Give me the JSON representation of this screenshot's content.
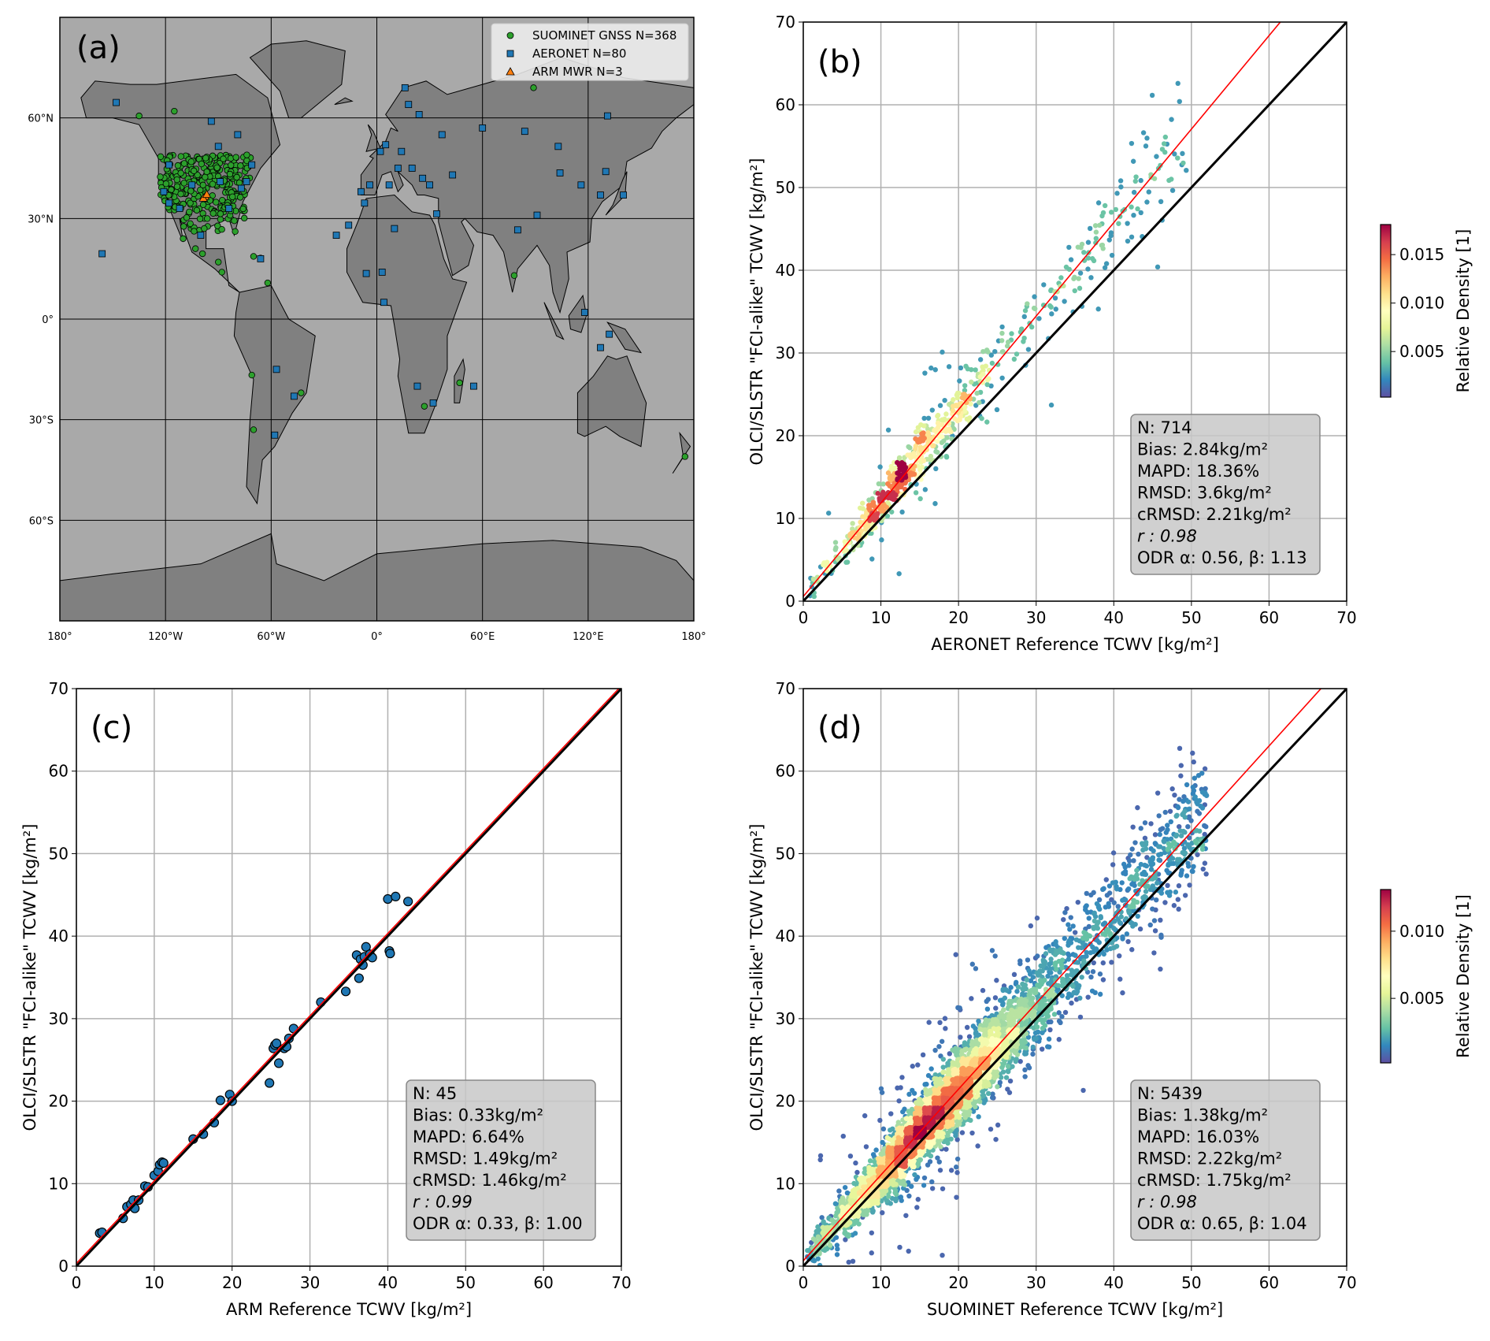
{
  "chart_data": [
    {
      "panel": "(a)",
      "type": "scatter",
      "subtype": "map",
      "x_tick_labels": [
        "180°",
        "120°W",
        "60°W",
        "0°",
        "60°E",
        "120°E",
        "180°"
      ],
      "y_tick_labels": [
        "60°N",
        "30°N",
        "0°",
        "30°S",
        "60°S"
      ],
      "xlim": [
        -180,
        180
      ],
      "ylim": [
        -90,
        90
      ],
      "grid": true,
      "legend_position": "top-right",
      "colors": {
        "ocean": "#a9a9a9",
        "land": "#808080"
      },
      "legend": [
        {
          "label": "SUOMINET GNSS N=368",
          "marker": "circle",
          "color": "#2ca02c"
        },
        {
          "label": "AERONET N=80",
          "marker": "square",
          "color": "#1f77b4"
        },
        {
          "label": "ARM MWR N=3",
          "marker": "triangle",
          "color": "#ff7f0e"
        }
      ],
      "aeronet_sites": [
        [
          -148,
          64.6
        ],
        [
          -156,
          19.5
        ],
        [
          -94,
          59
        ],
        [
          -90,
          51.5
        ],
        [
          -79,
          55
        ],
        [
          -71,
          46
        ],
        [
          -118,
          46
        ],
        [
          -121,
          38
        ],
        [
          -118,
          34.6
        ],
        [
          -77,
          39
        ],
        [
          -84,
          33
        ],
        [
          -105,
          40
        ],
        [
          -112,
          33
        ],
        [
          -89,
          41
        ],
        [
          -74,
          41
        ],
        [
          16,
          69
        ],
        [
          18,
          64
        ],
        [
          2,
          50
        ],
        [
          5,
          52
        ],
        [
          12,
          45
        ],
        [
          7,
          40
        ],
        [
          -9,
          38
        ],
        [
          -7,
          34.6
        ],
        [
          26,
          42
        ],
        [
          34,
          31.4
        ],
        [
          43,
          43
        ],
        [
          60,
          57
        ],
        [
          84,
          56
        ],
        [
          103,
          51.5
        ],
        [
          104,
          43.6
        ],
        [
          116,
          40
        ],
        [
          127,
          37
        ],
        [
          140,
          37
        ],
        [
          130,
          44
        ],
        [
          80,
          26.6
        ],
        [
          131,
          60.6
        ],
        [
          -16,
          28
        ],
        [
          -6,
          13.6
        ],
        [
          3,
          14
        ],
        [
          4,
          5
        ],
        [
          55,
          -20
        ],
        [
          23,
          -20
        ],
        [
          32,
          -25
        ],
        [
          -57,
          -15
        ],
        [
          -58,
          -34.6
        ],
        [
          -47,
          -23
        ],
        [
          127,
          -8.5
        ],
        [
          132,
          -4.5
        ],
        [
          118,
          2
        ],
        [
          91,
          31
        ],
        [
          10,
          27
        ],
        [
          -23,
          25
        ],
        [
          14,
          50
        ],
        [
          24,
          61
        ],
        [
          37,
          55
        ],
        [
          -4,
          40
        ],
        [
          30,
          40
        ],
        [
          20,
          45
        ],
        [
          -66,
          18
        ],
        [
          -100,
          25
        ]
      ],
      "suominet_sites_outside_conus": [
        [
          -135,
          60.6
        ],
        [
          -115,
          62
        ],
        [
          89,
          69
        ],
        [
          78,
          13
        ],
        [
          -71,
          -16.7
        ],
        [
          -70,
          -33
        ],
        [
          -43,
          -22
        ],
        [
          27,
          -26
        ],
        [
          47,
          -19
        ],
        [
          175,
          -41
        ],
        [
          -62,
          10.8
        ],
        [
          -70,
          18.7
        ],
        [
          -88,
          14
        ],
        [
          -90,
          17
        ],
        [
          -99,
          19.5
        ],
        [
          -103,
          21
        ],
        [
          -110,
          24
        ],
        [
          -66,
          18.2
        ]
      ],
      "arm_sites": [
        [
          -97.5,
          36.6
        ],
        [
          -98.5,
          36.1
        ],
        [
          -96.6,
          37.2
        ]
      ]
    },
    {
      "panel": "(b)",
      "type": "scatter",
      "n": 714,
      "xlabel": "AERONET Reference TCWV [kg/m²]",
      "ylabel": "OLCI/SLSTR \"FCI-alike\" TCWV [kg/m²]",
      "xlim": [
        0,
        70
      ],
      "ylim": [
        0,
        70
      ],
      "ticks": [
        "0",
        "10",
        "20",
        "30",
        "40",
        "50",
        "60",
        "70"
      ],
      "grid": true,
      "one_to_one_line_color": "#000000",
      "fit": {
        "alpha": 0.56,
        "beta": 1.13,
        "color": "#ff0000"
      },
      "stats": [
        "N: 714",
        "Bias: 2.84kg/m²",
        "MAPD: 18.36%",
        "RMSD: 3.6kg/m²",
        "cRMSD: 2.21kg/m²",
        "r  : 0.98",
        "ODR α: 0.56, β: 1.13"
      ],
      "colorbar": {
        "label": "Relative Density [1]",
        "ticks": [
          "0.005",
          "0.010",
          "0.015"
        ],
        "range": [
          0.0003,
          0.0181
        ],
        "colormap": "Spectral_r"
      }
    },
    {
      "panel": "(c)",
      "type": "scatter",
      "n": 45,
      "xlabel": "ARM Reference TCWV [kg/m²]",
      "ylabel": "OLCI/SLSTR \"FCI-alike\" TCWV [kg/m²]",
      "xlim": [
        0,
        70
      ],
      "ylim": [
        0,
        70
      ],
      "ticks": [
        "0",
        "10",
        "20",
        "30",
        "40",
        "50",
        "60",
        "70"
      ],
      "grid": true,
      "point_color": "#1f77b4",
      "fit": {
        "alpha": 0.33,
        "beta": 1.0,
        "color": "#ff0000"
      },
      "stats": [
        "N: 45",
        "Bias: 0.33kg/m²",
        "MAPD: 6.64%",
        "RMSD: 1.49kg/m²",
        "cRMSD: 1.46kg/m²",
        "r  : 0.99",
        "ODR α: 0.33, β: 1.00"
      ],
      "points": [
        [
          3,
          4
        ],
        [
          3.3,
          4.1
        ],
        [
          6,
          5.8
        ],
        [
          6.5,
          7.2
        ],
        [
          7,
          7.5
        ],
        [
          7.3,
          8
        ],
        [
          7.5,
          7
        ],
        [
          8,
          8
        ],
        [
          8.8,
          9.7
        ],
        [
          9.2,
          9.6
        ],
        [
          10,
          11
        ],
        [
          10.5,
          11.5
        ],
        [
          10.7,
          12.3
        ],
        [
          11,
          12.6
        ],
        [
          11.2,
          12.5
        ],
        [
          15,
          15.4
        ],
        [
          16.3,
          16
        ],
        [
          17.7,
          17.4
        ],
        [
          18.5,
          20.1
        ],
        [
          19.7,
          20.8
        ],
        [
          20,
          20
        ],
        [
          24.8,
          22.2
        ],
        [
          25.3,
          26.4
        ],
        [
          25.5,
          26.8
        ],
        [
          25.7,
          27
        ],
        [
          26,
          24.6
        ],
        [
          26.7,
          26.4
        ],
        [
          27,
          26.6
        ],
        [
          27.3,
          27.6
        ],
        [
          27.9,
          28.8
        ],
        [
          31.4,
          32
        ],
        [
          34.6,
          33.3
        ],
        [
          36,
          37.7
        ],
        [
          36.3,
          34.9
        ],
        [
          36.5,
          37.2
        ],
        [
          36.8,
          36.5
        ],
        [
          37,
          37.5
        ],
        [
          37.2,
          38.7
        ],
        [
          37.7,
          37.8
        ],
        [
          38,
          37.4
        ],
        [
          40,
          44.5
        ],
        [
          40.2,
          38.2
        ],
        [
          40.3,
          37.9
        ],
        [
          41,
          44.8
        ],
        [
          42.6,
          44.2
        ]
      ]
    },
    {
      "panel": "(d)",
      "type": "scatter",
      "n": 5439,
      "xlabel": "SUOMINET Reference TCWV [kg/m²]",
      "ylabel": "OLCI/SLSTR \"FCI-alike\" TCWV [kg/m²]",
      "xlim": [
        0,
        70
      ],
      "ylim": [
        0,
        70
      ],
      "ticks": [
        "0",
        "10",
        "20",
        "30",
        "40",
        "50",
        "60",
        "70"
      ],
      "grid": true,
      "one_to_one_line_color": "#000000",
      "fit": {
        "alpha": 0.65,
        "beta": 1.04,
        "color": "#ff0000"
      },
      "stats": [
        "N: 5439",
        "Bias: 1.38kg/m²",
        "MAPD: 16.03%",
        "RMSD: 2.22kg/m²",
        "cRMSD: 1.75kg/m²",
        "r  : 0.98",
        "ODR α: 0.65, β: 1.04"
      ],
      "colorbar": {
        "label": "Relative Density [1]",
        "ticks": [
          "0.005",
          "0.010"
        ],
        "range": [
          0.0002,
          0.0131
        ],
        "colormap": "Spectral_r"
      }
    }
  ]
}
